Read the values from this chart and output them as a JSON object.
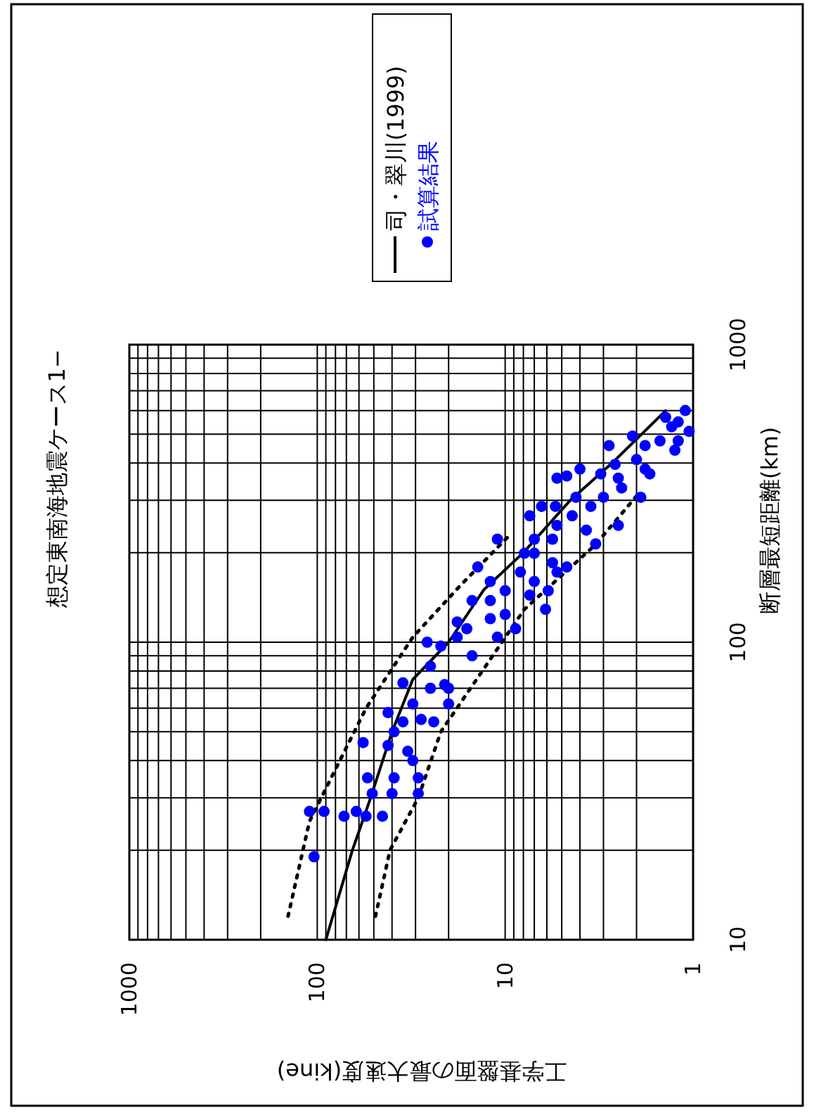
{
  "chart_data": {
    "type": "scatter",
    "title": "想定東南海地震ケース1−",
    "xlabel": "工学基盤面の最大速度(kine)",
    "ylabel": "断層最短距離(km)",
    "log": "xy",
    "grid": true,
    "legend": "top",
    "xlim": [
      1000,
      1
    ],
    "ylim": [
      10,
      1000
    ],
    "xticks": [
      1000,
      100,
      10,
      1
    ],
    "yticks": [
      10,
      100,
      1000
    ],
    "series": [
      {
        "name": "司・翠川(1999)",
        "type": "line",
        "color": "#000000",
        "line_style": "solid",
        "marker": "none",
        "values": [
          10,
          20,
          30,
          50,
          75,
          100,
          150,
          200,
          300,
          400,
          600
        ],
        "x": [
          90,
          65,
          52,
          40,
          31,
          20,
          13,
          8,
          4.5,
          2.7,
          1.4
        ]
      },
      {
        "type": "line",
        "color": "#000000",
        "line_style": "dotted",
        "marker": "none",
        "values": [
          12,
          25,
          60,
          104,
          154,
          230
        ],
        "x": [
          143,
          110,
          55,
          31,
          17.5,
          9.4
        ]
      },
      {
        "type": "line",
        "color": "#000000",
        "line_style": "dotted",
        "marker": "none",
        "values": [
          12,
          20,
          30,
          50,
          129,
          213,
          310
        ],
        "x": [
          49,
          41,
          29,
          22,
          7.9,
          3.3,
          2.0
        ]
      },
      {
        "name": "試算結果",
        "color": "#0000ff",
        "marker": "circle",
        "values": [
          27,
          27,
          19,
          26,
          27,
          26,
          26,
          35,
          31,
          31,
          35,
          31,
          35,
          46,
          45,
          43,
          58,
          54,
          55,
          54,
          73,
          100,
          83,
          72,
          62,
          97,
          104,
          117,
          90,
          179,
          138,
          138,
          120,
          222,
          149,
          111,
          104,
          266,
          199,
          160,
          129,
          286,
          247,
          185,
          179,
          356,
          307,
          382,
          286,
          214,
          247,
          368,
          330,
          396,
          411,
          458,
          368,
          530,
          442,
          601,
          511,
          570,
          362,
          458,
          493,
          238,
          222,
          222,
          172,
          149,
          124,
          160,
          199,
          266,
          307,
          382,
          475,
          550,
          475,
          286,
          356,
          307,
          111,
          70,
          70,
          62,
          50,
          40,
          172,
          144
        ],
        "x": [
          110,
          92,
          104,
          72,
          62,
          55,
          45,
          54,
          51,
          40,
          39,
          29,
          29,
          57,
          42,
          33,
          42,
          35,
          28,
          24,
          35,
          26,
          25,
          21,
          20,
          22,
          18,
          18,
          15,
          14,
          15,
          12,
          12,
          11,
          10,
          8.8,
          11,
          7.4,
          7.9,
          7.0,
          6.1,
          6.4,
          5.3,
          5.6,
          4.7,
          5.3,
          4.2,
          4.0,
          3.5,
          3.3,
          2.5,
          3.1,
          2.4,
          2.6,
          2.0,
          1.8,
          1.7,
          1.3,
          1.25,
          1.1,
          1.05,
          1.4,
          4.7,
          2.8,
          2.1,
          3.7,
          7.0,
          5.6,
          8.3,
          5.9,
          10,
          12,
          7.0,
          4.4,
          3.0,
          1.8,
          1.5,
          1.2,
          1.2,
          5.4,
          2.5,
          1.9,
          16,
          20,
          25,
          31,
          39,
          31,
          5.3,
          7.4
        ]
      }
    ]
  }
}
